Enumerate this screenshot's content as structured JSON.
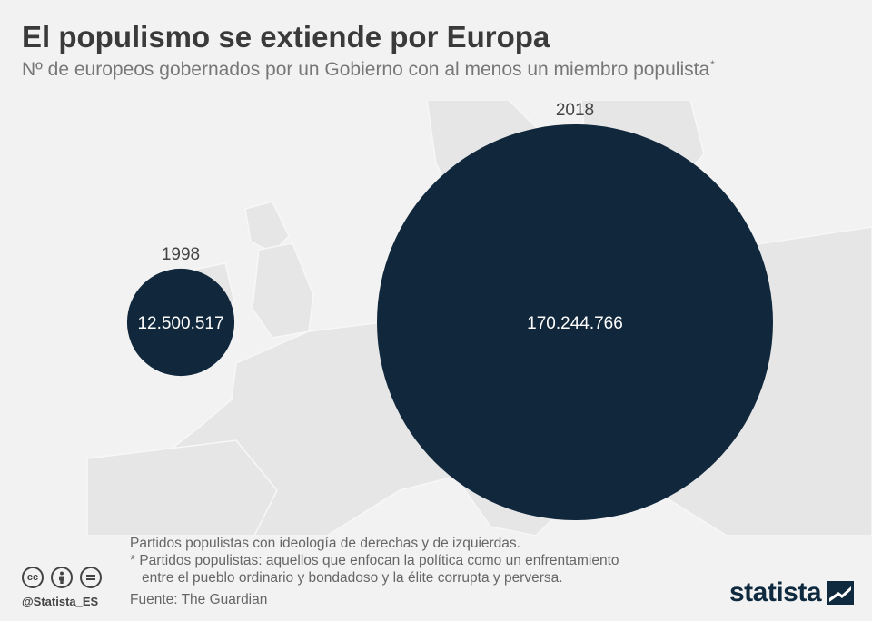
{
  "header": {
    "title": "El populismo se extiende por Europa",
    "subtitle": "Nº de europeos gobernados por un Gobierno con al menos un miembro populista",
    "subtitle_mark": "*"
  },
  "chart_data": {
    "type": "bubble",
    "title": "El populismo se extiende por Europa",
    "subtitle": "Nº de europeos gobernados por un Gobierno con al menos un miembro populista*",
    "categories": [
      "1998",
      "2018"
    ],
    "values": [
      12500517,
      170244766
    ],
    "value_labels": [
      "12.500.517",
      "170.244.766"
    ],
    "color": "#10273c"
  },
  "notes": {
    "line1": "Partidos populistas con ideología de derechas y de izquierdas.",
    "line2": "* Partidos populistas: aquellos que enfocan la política como un enfrentamiento",
    "line3": "entre el pueblo ordinario y bondadoso y la élite corrupta y perversa."
  },
  "footer": {
    "source": "Fuente: The Guardian",
    "handle": "@Statista_ES",
    "brand": "statista",
    "cc_icons": [
      "cc-icon",
      "by-icon",
      "nd-icon"
    ]
  },
  "colors": {
    "bubble": "#10273c",
    "background": "#f2f2f2",
    "map": "#e6e6e6",
    "brand": "#0f2a3e"
  }
}
